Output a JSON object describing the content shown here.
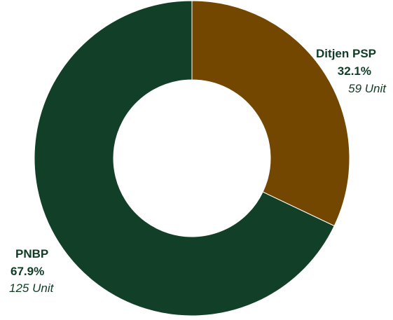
{
  "chart_data": {
    "type": "pie",
    "donut": true,
    "title": "",
    "slices": [
      {
        "label": "Ditjen PSP",
        "percent_label": "32.1%",
        "percent": 32.1,
        "value": 59,
        "unit_label": "59 Unit",
        "color": "#734700"
      },
      {
        "label": "PNBP",
        "percent_label": "67.9%",
        "percent": 67.9,
        "value": 125,
        "unit_label": "125 Unit",
        "color": "#123f27"
      }
    ],
    "legend": "none"
  }
}
